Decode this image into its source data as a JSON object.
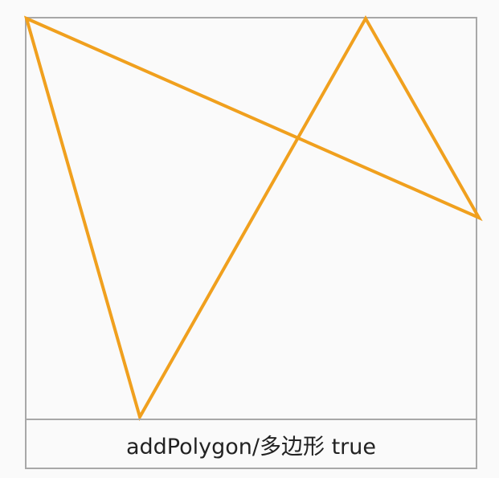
{
  "caption": {
    "text": "addPolygon/多边形 true"
  },
  "polygon": {
    "color": "#f0a01e"
  },
  "frame": {
    "border_color": "#a8a8a8",
    "background": "#fafafa"
  }
}
